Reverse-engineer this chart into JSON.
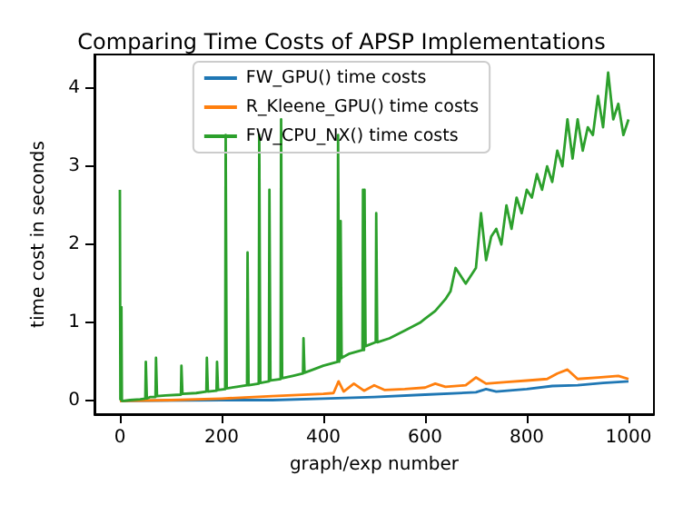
{
  "chart_data": {
    "type": "line",
    "title": "Comparing Time Costs of APSP Implementations",
    "xlabel": "graph/exp number",
    "ylabel": "time cost in seconds",
    "xlim": [
      -50,
      1050
    ],
    "xticks": [
      0,
      200,
      400,
      600,
      800,
      1000
    ],
    "ylim": [
      -0.17,
      4.43
    ],
    "yticks": [
      0,
      1,
      2,
      3,
      4
    ],
    "grid": false,
    "legend": "top",
    "marker": "none",
    "line_style": "solid",
    "series": [
      {
        "name": "FW_GPU() time costs",
        "color": "#1f77b4",
        "x": [
          0,
          200,
          300,
          400,
          500,
          600,
          700,
          720,
          740,
          800,
          850,
          900,
          950,
          1000
        ],
        "values": [
          0,
          0.01,
          0.01,
          0.03,
          0.05,
          0.08,
          0.11,
          0.15,
          0.12,
          0.15,
          0.19,
          0.2,
          0.23,
          0.25
        ]
      },
      {
        "name": "R_Kleene_GPU() time costs",
        "color": "#ff7f0e",
        "x": [
          0,
          100,
          200,
          300,
          400,
          420,
          430,
          440,
          460,
          480,
          500,
          520,
          560,
          600,
          620,
          640,
          680,
          700,
          720,
          760,
          800,
          840,
          860,
          880,
          900,
          940,
          980,
          1000
        ],
        "values": [
          0,
          0.01,
          0.03,
          0.06,
          0.09,
          0.1,
          0.25,
          0.12,
          0.22,
          0.13,
          0.2,
          0.14,
          0.15,
          0.17,
          0.22,
          0.18,
          0.2,
          0.3,
          0.22,
          0.24,
          0.26,
          0.28,
          0.35,
          0.4,
          0.28,
          0.3,
          0.32,
          0.28
        ]
      },
      {
        "name": "FW_CPU_NX() time costs",
        "color": "#2ca02c",
        "x": [
          0,
          1,
          2,
          3,
          4,
          8,
          20,
          40,
          50,
          51,
          53,
          60,
          70,
          71,
          73,
          90,
          120,
          121,
          123,
          150,
          170,
          171,
          173,
          190,
          191,
          193,
          207,
          208,
          210,
          230,
          250,
          251,
          253,
          273,
          274,
          276,
          293,
          294,
          296,
          316,
          317,
          319,
          340,
          360,
          361,
          363,
          380,
          400,
          428,
          429,
          431,
          433,
          434,
          436,
          450,
          477,
          478,
          480,
          481,
          483,
          503,
          504,
          506,
          530,
          560,
          590,
          600,
          620,
          640,
          650,
          660,
          680,
          700,
          710,
          720,
          730,
          740,
          750,
          760,
          770,
          780,
          790,
          800,
          810,
          820,
          830,
          840,
          850,
          860,
          870,
          880,
          890,
          900,
          910,
          920,
          930,
          940,
          950,
          960,
          970,
          980,
          990,
          1000
        ],
        "values": [
          2.7,
          0.02,
          0.02,
          1.2,
          0,
          0,
          0.01,
          0.02,
          0.03,
          0.5,
          0.03,
          0.05,
          0.05,
          0.55,
          0.06,
          0.07,
          0.08,
          0.45,
          0.09,
          0.1,
          0.12,
          0.55,
          0.12,
          0.13,
          0.5,
          0.14,
          0.15,
          3.4,
          0.16,
          0.18,
          0.2,
          1.9,
          0.2,
          0.22,
          3.4,
          0.23,
          0.25,
          2.7,
          0.26,
          0.28,
          3.6,
          0.29,
          0.32,
          0.35,
          0.8,
          0.36,
          0.4,
          0.45,
          0.5,
          3.4,
          0.5,
          0.55,
          2.3,
          0.55,
          0.6,
          0.65,
          2.7,
          0.65,
          2.7,
          0.7,
          0.75,
          2.4,
          0.75,
          0.8,
          0.9,
          1,
          1.05,
          1.15,
          1.3,
          1.4,
          1.7,
          1.5,
          1.7,
          2.4,
          1.8,
          2.1,
          2.2,
          2,
          2.5,
          2.2,
          2.6,
          2.4,
          2.7,
          2.6,
          2.9,
          2.7,
          3,
          2.8,
          3.2,
          3,
          3.6,
          3.1,
          3.6,
          3.2,
          3.5,
          3.4,
          3.9,
          3.5,
          4.2,
          3.6,
          3.8,
          3.4,
          3.6
        ]
      }
    ]
  }
}
